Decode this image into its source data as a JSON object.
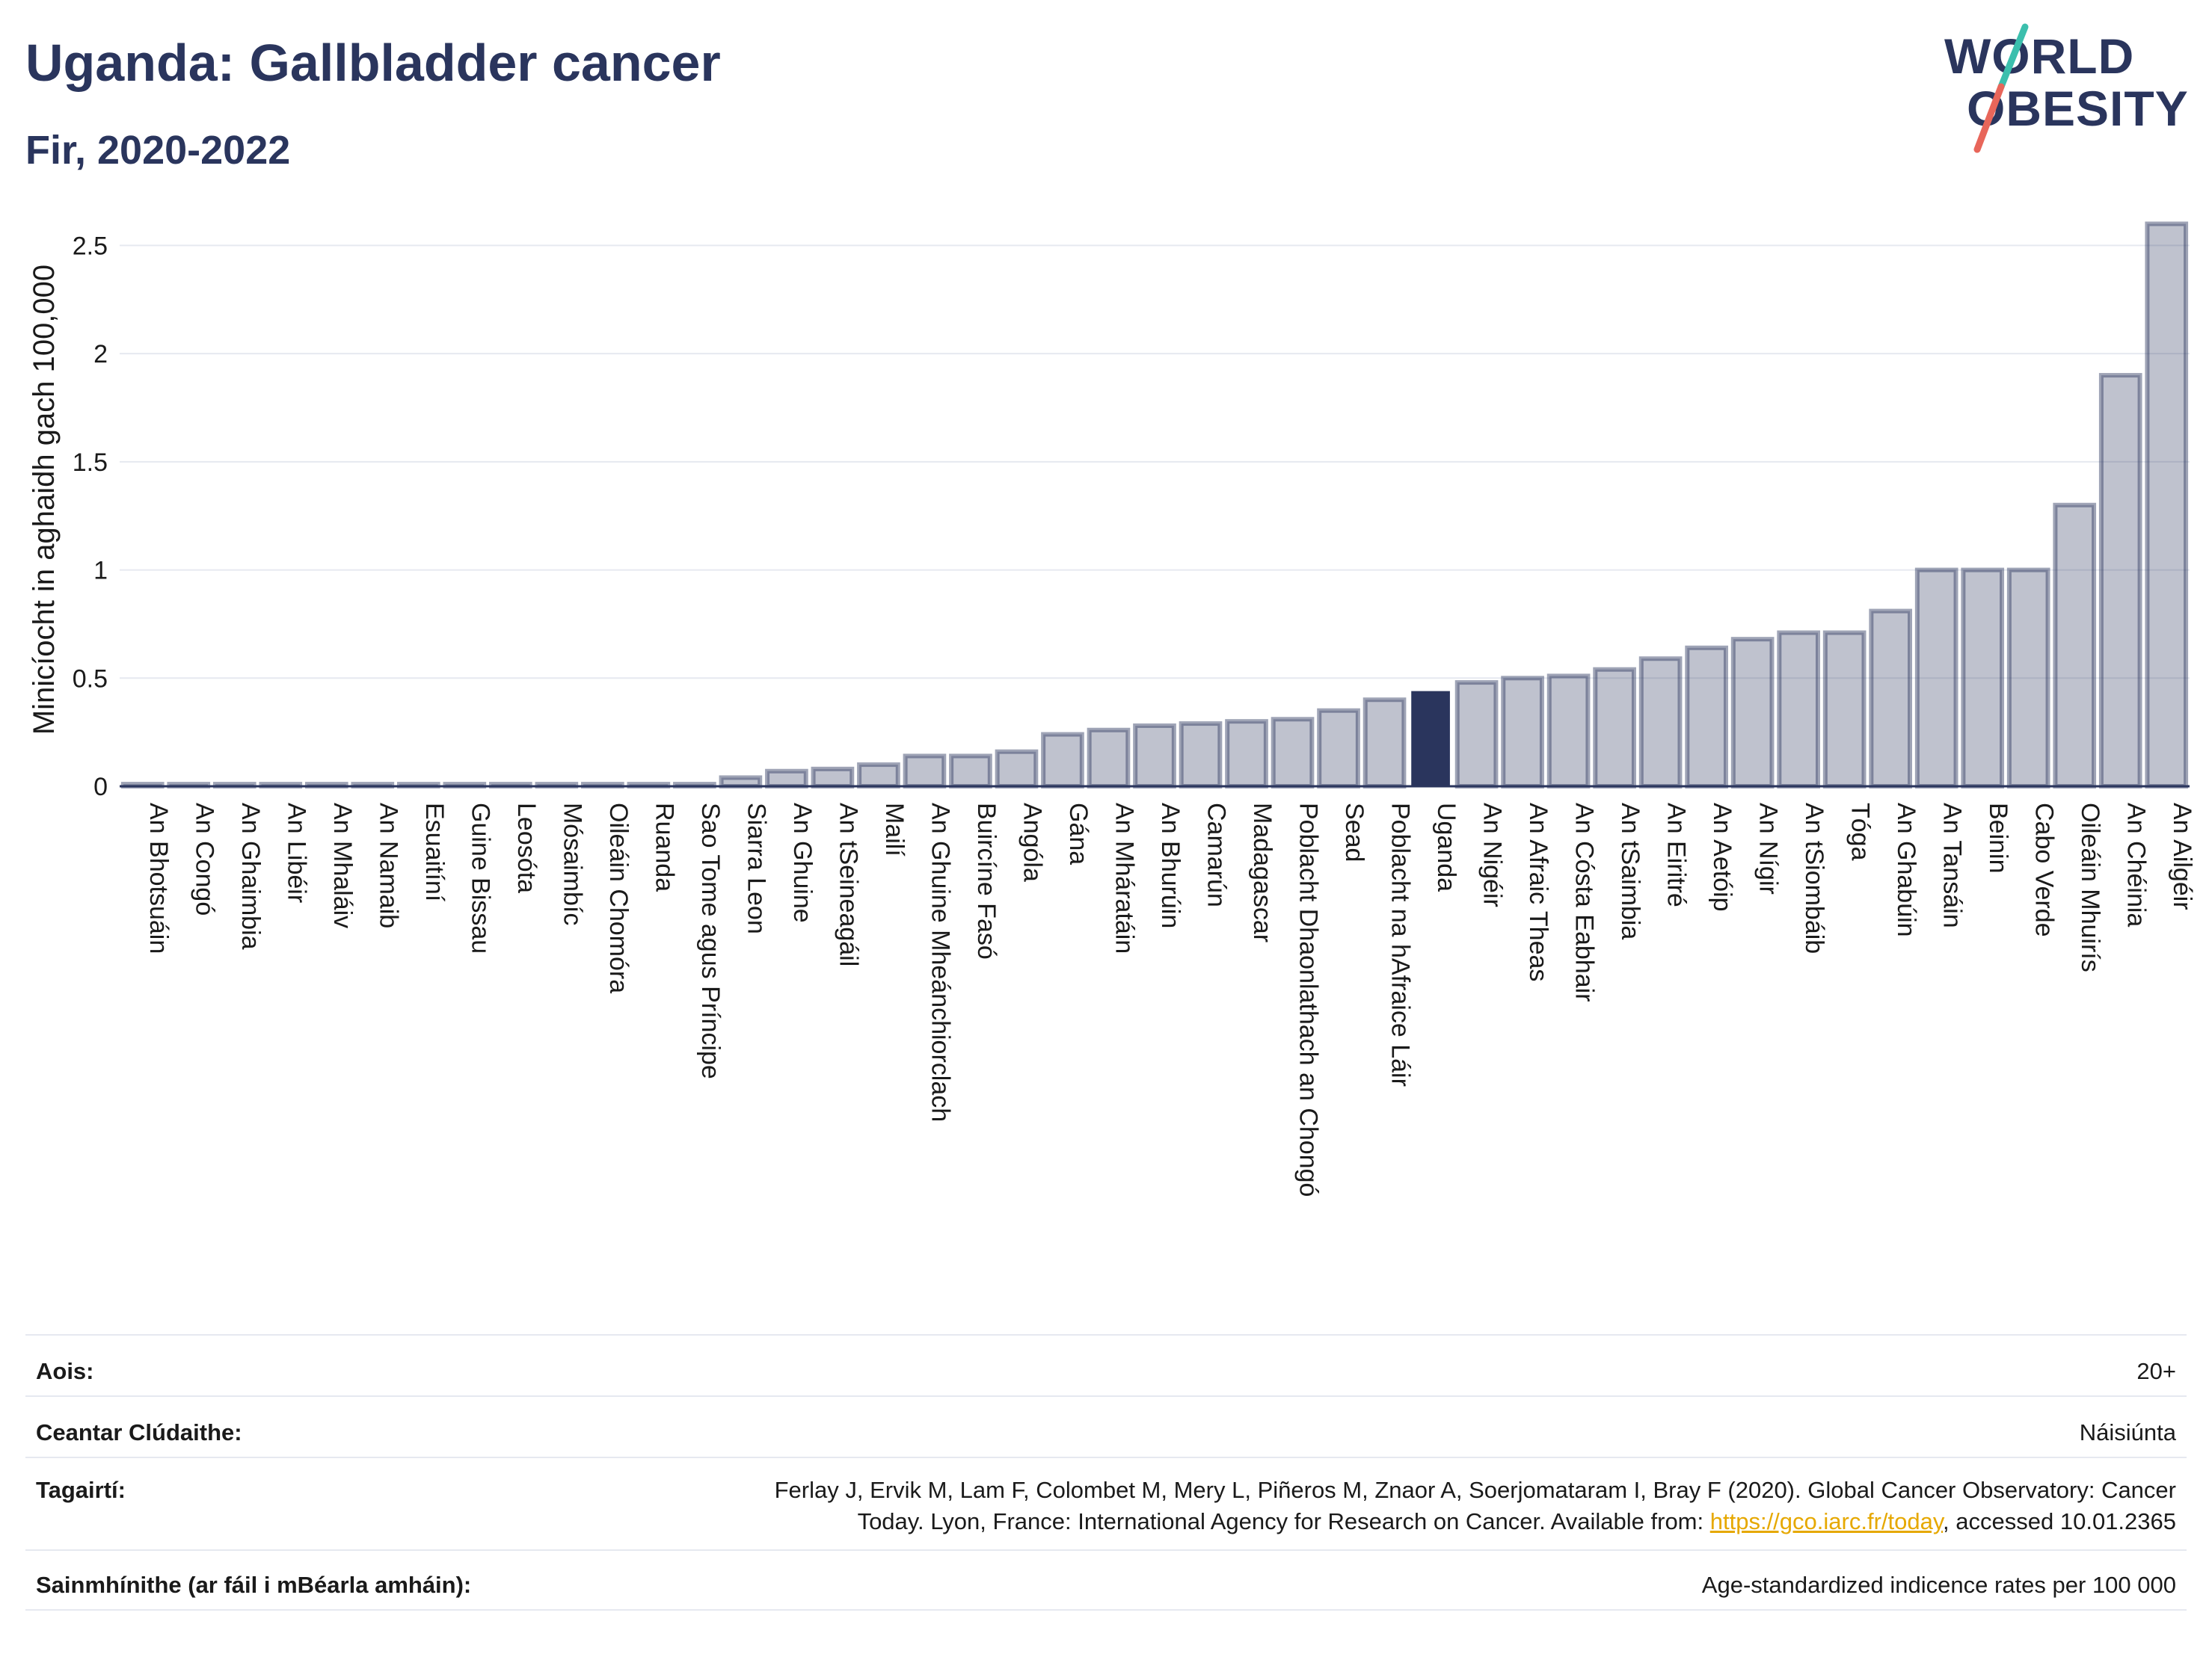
{
  "header": {
    "title": "Uganda: Gallbladder cancer",
    "subtitle": "Fir, 2020-2022"
  },
  "logo": {
    "word1": "W RLD",
    "word2": "BESITY",
    "colors": {
      "text": "#2a355d",
      "slash_teal": "#3bbfad",
      "slash_red": "#e8665a"
    }
  },
  "chart_data": {
    "type": "bar",
    "ylabel": "Minicíocht in aghaidh gach 100,000",
    "xlabel": "",
    "ylim": [
      0,
      2.65
    ],
    "yticks": [
      0,
      0.5,
      1,
      1.5,
      2,
      2.5
    ],
    "ytick_labels": [
      "0",
      "0.5",
      "1",
      "1.5",
      "2",
      "2.5"
    ],
    "grid": true,
    "highlight": "Uganda",
    "colors": {
      "bar": "#2a355d",
      "highlight": "#2a355d"
    },
    "categories": [
      "An Bhotsuáin",
      "An Congó",
      "An Ghaimbia",
      "An Libéir",
      "An Mhaláiv",
      "An Namaib",
      "Esuaitíní",
      "Guine Bissau",
      "Leosóta",
      "Mósaimbíc",
      "Oileáin Chomóra",
      "Ruanda",
      "Sao Tome agus Príncipe",
      "Siarra Leon",
      "An Ghuine",
      "An tSeineagáil",
      "Mailí",
      "An Ghuine Mheánchiorclach",
      "Buircíne Fasó",
      "Angóla",
      "Gána",
      "An Mháratáin",
      "An Bhurúin",
      "Camarún",
      "Madagascar",
      "Poblacht Dhaonlathach an Chongó",
      "Sead",
      "Poblacht na hAfraice Láir",
      "Uganda",
      "An Nigéir",
      "An Afraic Theas",
      "An Cósta Eabhair",
      "An tSaimbia",
      "An Eiritré",
      "An Aetóip",
      "An Nígir",
      "An tSiombáib",
      "Tóga",
      "An Ghabúin",
      "An Tansáin",
      "Beinin",
      "Cabo Verde",
      "Oileáin Mhuirís",
      "An Chéinia",
      "An Ailgéir"
    ],
    "values": [
      0.01,
      0.01,
      0.01,
      0.01,
      0.01,
      0.01,
      0.01,
      0.01,
      0.01,
      0.01,
      0.01,
      0.01,
      0.01,
      0.04,
      0.07,
      0.08,
      0.1,
      0.14,
      0.14,
      0.16,
      0.24,
      0.26,
      0.28,
      0.29,
      0.3,
      0.31,
      0.35,
      0.4,
      0.44,
      0.48,
      0.5,
      0.51,
      0.54,
      0.59,
      0.64,
      0.68,
      0.71,
      0.71,
      0.81,
      1.0,
      1.0,
      1.0,
      1.3,
      1.9,
      2.6
    ]
  },
  "footer": {
    "age": {
      "label": "Aois:",
      "value": "20+"
    },
    "area": {
      "label": "Ceantar Clúdaithe:",
      "value": "Náisiúnta"
    },
    "references": {
      "label": "Tagairtí:",
      "line1": "Ferlay J, Ervik M, Lam F, Colombet M, Mery L, Piñeros M, Znaor A, Soerjomataram I, Bray F (2020). Global Cancer Observatory: Cancer",
      "line2_prefix": "Today. Lyon, France: International Agency for Research on Cancer. Available from: ",
      "link": "https://gco.iarc.fr/today",
      "line2_suffix": ", accessed 10.01.2365"
    },
    "definitions": {
      "label": "Sainmhínithe (ar fáil i mBéarla amháin):",
      "value": "Age-standardized indicence rates per 100 000"
    }
  }
}
